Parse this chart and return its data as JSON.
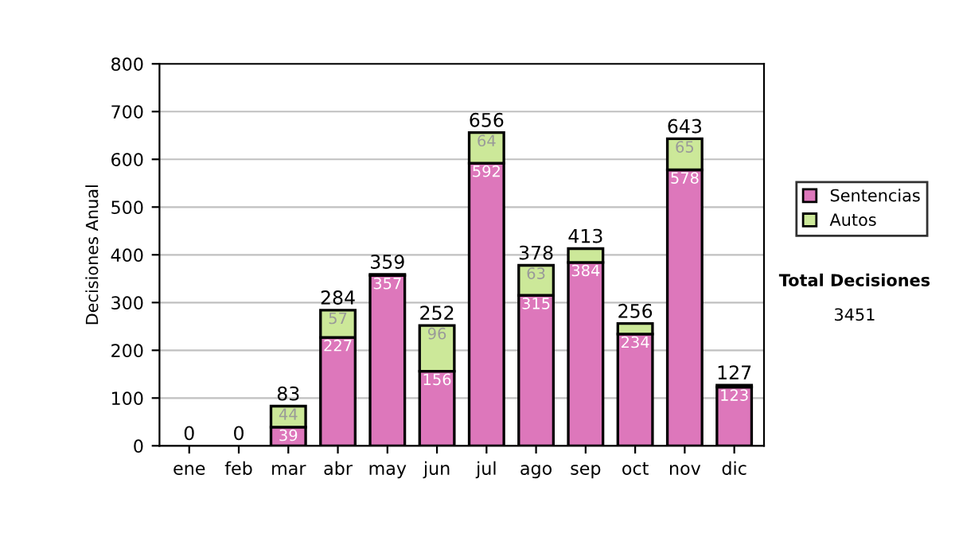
{
  "chart_data": {
    "type": "bar",
    "stacked": true,
    "ylabel": "Decisiones Anual",
    "categories": [
      "ene",
      "feb",
      "mar",
      "abr",
      "may",
      "jun",
      "jul",
      "ago",
      "sep",
      "oct",
      "nov",
      "dic"
    ],
    "series": [
      {
        "name": "Sentencias",
        "color": "#dd77bb",
        "values": [
          0,
          0,
          39,
          227,
          357,
          156,
          592,
          315,
          384,
          234,
          578,
          123
        ],
        "value_labels": [
          null,
          null,
          "39",
          "227",
          "357",
          "156",
          "592",
          "315",
          "384",
          "234",
          "578",
          "123"
        ]
      },
      {
        "name": "Autos",
        "color": "#cce899",
        "values": [
          0,
          0,
          44,
          57,
          2,
          96,
          64,
          63,
          29,
          22,
          65,
          4
        ],
        "value_labels": [
          null,
          null,
          "44",
          "57",
          null,
          "96",
          "64",
          "63",
          null,
          null,
          "65",
          null
        ]
      }
    ],
    "totals": [
      "0",
      "0",
      "83",
      "284",
      "359",
      "252",
      "656",
      "378",
      "413",
      "256",
      "643",
      "127"
    ],
    "ylim": [
      0,
      800
    ],
    "yticks": [
      0,
      100,
      200,
      300,
      400,
      500,
      600,
      700,
      800
    ],
    "grid": "y",
    "legend": "right",
    "annotations": [
      "Total Decisiones",
      "3451"
    ]
  }
}
